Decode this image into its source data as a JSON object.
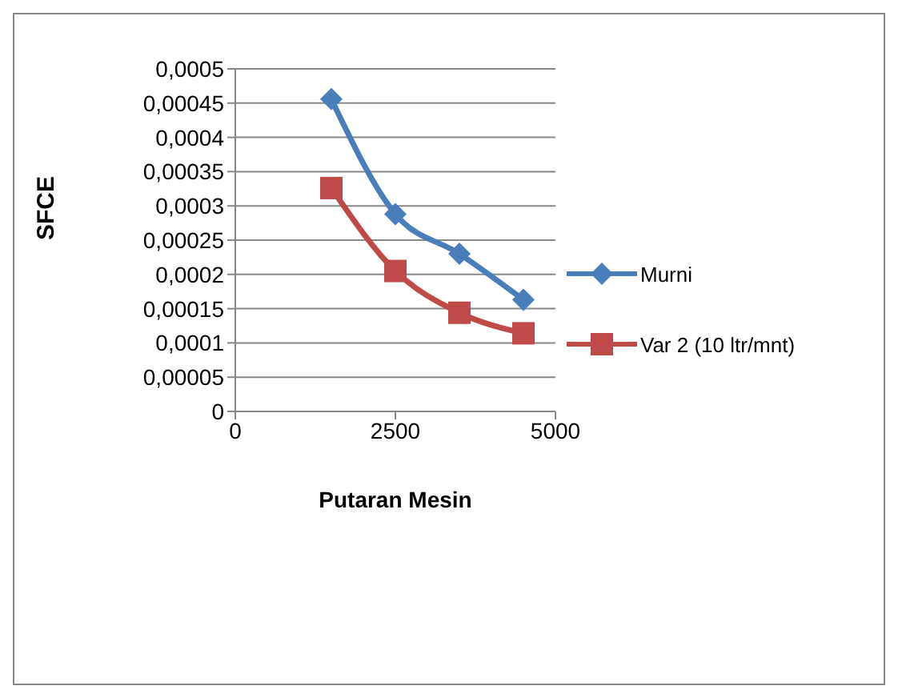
{
  "chart_data": {
    "type": "line",
    "xlabel": "Putaran Mesin",
    "ylabel": "SFCE",
    "x": [
      1500,
      2500,
      3500,
      4500
    ],
    "series": [
      {
        "name": "Murni",
        "color": "#4a7ebb",
        "marker": "diamond",
        "values": [
          0.000456,
          0.000288,
          0.00023,
          0.000163
        ]
      },
      {
        "name": "Var 2 (10 ltr/mnt)",
        "color": "#be4b48",
        "marker": "square",
        "values": [
          0.000326,
          0.000205,
          0.000144,
          0.000114
        ]
      }
    ],
    "xlim": [
      0,
      5000
    ],
    "xticks": [
      0,
      2500,
      5000
    ],
    "ylim": [
      0,
      0.0005
    ],
    "yticks": [
      0,
      {
        "value": 5e-05,
        "label": "0,00005"
      },
      {
        "value": 0.0001,
        "label": "0,0001"
      },
      {
        "value": 0.00015,
        "label": "0,00015"
      },
      {
        "value": 0.0002,
        "label": "0,0002"
      },
      {
        "value": 0.00025,
        "label": "0,00025"
      },
      {
        "value": 0.0003,
        "label": "0,0003"
      },
      {
        "value": 0.00035,
        "label": "0,00035"
      },
      {
        "value": 0.0004,
        "label": "0,0004"
      },
      {
        "value": 0.00045,
        "label": "0,00045"
      },
      {
        "value": 0.0005,
        "label": "0,0005"
      }
    ],
    "grid": "y",
    "legend": "right"
  }
}
